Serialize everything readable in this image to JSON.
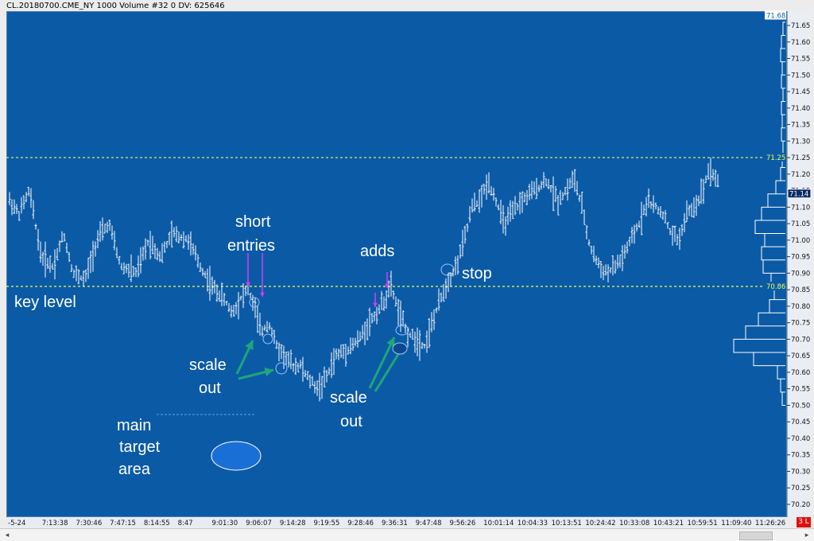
{
  "window": {
    "title": "CL.20180700.CME_NY  1000 Volume  #32 0  DV: 625646"
  },
  "corner_badge": "3 L",
  "chart_data": {
    "type": "bar",
    "instrument": "CL.20180700.CME_NY",
    "bar_type": "1000 Volume",
    "background": "#0b5aa6",
    "bar_color": "#ffffff",
    "y_axis_position": "right",
    "ylim": [
      70.18,
      71.69
    ],
    "y_ticks": [
      70.2,
      70.25,
      70.3,
      70.35,
      70.4,
      70.45,
      70.5,
      70.55,
      70.6,
      70.65,
      70.7,
      70.75,
      70.8,
      70.85,
      70.9,
      70.95,
      71.0,
      71.05,
      71.1,
      71.15,
      71.2,
      71.25,
      71.3,
      71.35,
      71.4,
      71.45,
      71.5,
      71.55,
      71.6,
      71.65
    ],
    "y_tick_labels": [
      "70.20",
      "70.25",
      "70.30",
      "70.35",
      "70.40",
      "70.45",
      "70.50",
      "70.55",
      "70.60",
      "70.65",
      "70.70",
      "70.75",
      "70.80",
      "70.85",
      "70.90",
      "70.95",
      "71.00",
      "71.05",
      "71.10",
      "71.15",
      "71.20",
      "71.25",
      "71.30",
      "71.35",
      "71.40",
      "71.45",
      "71.50",
      "71.55",
      "71.60",
      "71.65"
    ],
    "x_tick_labels": [
      "-5-24",
      "7:13:38",
      "7:30:46",
      "7:47:15",
      "8:14:55",
      "8:47",
      "9:01:30",
      "9:06:07",
      "9:14:28",
      "9:19:55",
      "9:28:46",
      "9:36:31",
      "9:47:48",
      "9:56:26",
      "10:01:14",
      "10:04:33",
      "10:13:51",
      "10:24:42",
      "10:33:08",
      "10:43:21",
      "10:59:51",
      "11:09:40",
      "11:26:26"
    ],
    "price_path": [
      [
        0,
        71.12
      ],
      [
        12,
        71.08
      ],
      [
        25,
        71.15
      ],
      [
        40,
        70.95
      ],
      [
        55,
        70.92
      ],
      [
        68,
        71.02
      ],
      [
        80,
        70.9
      ],
      [
        95,
        70.88
      ],
      [
        110,
        71.0
      ],
      [
        125,
        71.05
      ],
      [
        140,
        70.92
      ],
      [
        160,
        70.9
      ],
      [
        175,
        71.0
      ],
      [
        190,
        70.95
      ],
      [
        205,
        71.02
      ],
      [
        225,
        71.0
      ],
      [
        240,
        70.92
      ],
      [
        255,
        70.86
      ],
      [
        270,
        70.82
      ],
      [
        280,
        70.78
      ],
      [
        292,
        70.83
      ],
      [
        300,
        70.85
      ],
      [
        308,
        70.8
      ],
      [
        316,
        70.72
      ],
      [
        326,
        70.75
      ],
      [
        336,
        70.68
      ],
      [
        346,
        70.65
      ],
      [
        356,
        70.62
      ],
      [
        366,
        70.62
      ],
      [
        376,
        70.58
      ],
      [
        388,
        70.55
      ],
      [
        398,
        70.58
      ],
      [
        410,
        70.65
      ],
      [
        425,
        70.67
      ],
      [
        440,
        70.7
      ],
      [
        452,
        70.75
      ],
      [
        462,
        70.78
      ],
      [
        472,
        70.82
      ],
      [
        480,
        70.86
      ],
      [
        490,
        70.78
      ],
      [
        500,
        70.72
      ],
      [
        512,
        70.7
      ],
      [
        522,
        70.68
      ],
      [
        532,
        70.75
      ],
      [
        542,
        70.82
      ],
      [
        552,
        70.88
      ],
      [
        562,
        70.92
      ],
      [
        572,
        71.0
      ],
      [
        582,
        71.1
      ],
      [
        592,
        71.12
      ],
      [
        602,
        71.18
      ],
      [
        612,
        71.12
      ],
      [
        622,
        71.05
      ],
      [
        632,
        71.08
      ],
      [
        645,
        71.12
      ],
      [
        660,
        71.15
      ],
      [
        675,
        71.18
      ],
      [
        690,
        71.12
      ],
      [
        700,
        71.15
      ],
      [
        710,
        71.19
      ],
      [
        720,
        71.1
      ],
      [
        730,
        70.98
      ],
      [
        742,
        70.92
      ],
      [
        752,
        70.9
      ],
      [
        762,
        70.92
      ],
      [
        772,
        70.95
      ],
      [
        782,
        71.0
      ],
      [
        792,
        71.05
      ],
      [
        802,
        71.12
      ],
      [
        812,
        71.1
      ],
      [
        822,
        71.08
      ],
      [
        832,
        71.02
      ],
      [
        842,
        71.0
      ],
      [
        852,
        71.08
      ],
      [
        862,
        71.1
      ],
      [
        872,
        71.15
      ],
      [
        880,
        71.22
      ],
      [
        890,
        71.18
      ],
      [
        900,
        71.12
      ],
      [
        905,
        71.12
      ]
    ],
    "price_flags": [
      {
        "label": "71.68",
        "value": 71.68,
        "color": "#ffffff",
        "text_color": "#0b5aa6"
      },
      {
        "label": "71.25",
        "value": 71.25,
        "color": "#0b5aa6",
        "text_color": "#eaff55"
      },
      {
        "label": "71.14",
        "value": 71.14,
        "color": "#0b2b66",
        "text_color": "#ffffff"
      },
      {
        "label": "70.86",
        "value": 70.86,
        "color": "#0b5aa6",
        "text_color": "#eaff55"
      }
    ],
    "horizontal_lines": [
      {
        "value": 71.25,
        "style": "dashed",
        "color": "#eaff55"
      },
      {
        "value": 70.86,
        "style": "dashed",
        "color": "#eaff55"
      }
    ],
    "volume_profile": [
      {
        "price": 70.52,
        "volume": 4
      },
      {
        "price": 70.56,
        "volume": 6
      },
      {
        "price": 70.6,
        "volume": 10
      },
      {
        "price": 70.64,
        "volume": 40
      },
      {
        "price": 70.68,
        "volume": 65
      },
      {
        "price": 70.72,
        "volume": 50
      },
      {
        "price": 70.76,
        "volume": 34
      },
      {
        "price": 70.8,
        "volume": 20
      },
      {
        "price": 70.84,
        "volume": 14
      },
      {
        "price": 70.88,
        "volume": 18
      },
      {
        "price": 70.92,
        "volume": 28
      },
      {
        "price": 70.96,
        "volume": 30
      },
      {
        "price": 71.0,
        "volume": 26
      },
      {
        "price": 71.04,
        "volume": 38
      },
      {
        "price": 71.08,
        "volume": 30
      },
      {
        "price": 71.12,
        "volume": 22
      },
      {
        "price": 71.16,
        "volume": 12
      },
      {
        "price": 71.2,
        "volume": 6
      },
      {
        "price": 71.24,
        "volume": 4
      },
      {
        "price": 71.28,
        "volume": 3
      },
      {
        "price": 71.32,
        "volume": 5
      },
      {
        "price": 71.36,
        "volume": 4
      },
      {
        "price": 71.4,
        "volume": 5
      },
      {
        "price": 71.44,
        "volume": 3
      },
      {
        "price": 71.48,
        "volume": 5
      },
      {
        "price": 71.52,
        "volume": 4
      },
      {
        "price": 71.56,
        "volume": 6
      },
      {
        "price": 71.6,
        "volume": 5
      },
      {
        "price": 71.64,
        "volume": 3
      }
    ],
    "annotations": {
      "short_entries": [
        "short",
        "entries"
      ],
      "adds": "adds",
      "stop": "stop",
      "key_level": "key level",
      "scale_out_1": [
        "scale",
        "out"
      ],
      "scale_out_2": [
        "scale",
        "out"
      ],
      "main_target": [
        "main",
        "target",
        "area"
      ]
    },
    "annotation_colors": {
      "text": "#ffffff",
      "entry_arrows": "#d63cf0",
      "scale_arrows": "#1fa67a",
      "fill_circles": "#9cc3ff"
    }
  }
}
